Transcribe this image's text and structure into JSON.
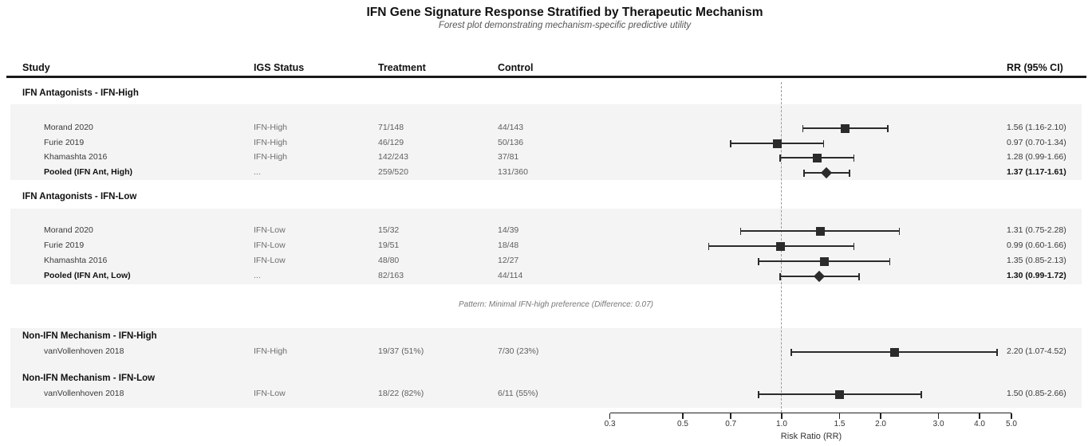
{
  "chart_data": {
    "type": "forest",
    "title": "IFN Gene Signature Response Stratified by Therapeutic Mechanism",
    "subtitle": "Forest plot demonstrating mechanism-specific predictive utility",
    "annotation": "Pattern: Minimal IFN-high preference (Difference: 0.07)",
    "columns": {
      "study": "Study",
      "igs": "IGS Status",
      "treatment": "Treatment",
      "control": "Control",
      "rr": "RR (95% CI)"
    },
    "x_label": "Risk Ratio (RR)",
    "x_scale": "log",
    "x_ticks": [
      "0.3",
      "0.5",
      "0.7",
      "1.0",
      "1.5",
      "2.0",
      "3.0",
      "4.0",
      "5.0"
    ],
    "x_range": [
      0.3,
      5.0
    ],
    "ref_line": 1.0,
    "groups": [
      {
        "header": "IFN Antagonists - IFN-High",
        "shaded": true,
        "rows": [
          {
            "study": "Morand 2020",
            "igs": "IFN-High",
            "treatment": "71/148",
            "control": "44/143",
            "rr": 1.56,
            "ci_low": 1.16,
            "ci_high": 2.1,
            "rr_text": "1.56 (1.16-2.10)",
            "pooled": false
          },
          {
            "study": "Furie 2019",
            "igs": "IFN-High",
            "treatment": "46/129",
            "control": "50/136",
            "rr": 0.97,
            "ci_low": 0.7,
            "ci_high": 1.34,
            "rr_text": "0.97 (0.70-1.34)",
            "pooled": false
          },
          {
            "study": "Khamashta 2016",
            "igs": "IFN-High",
            "treatment": "142/243",
            "control": "37/81",
            "rr": 1.28,
            "ci_low": 0.99,
            "ci_high": 1.66,
            "rr_text": "1.28 (0.99-1.66)",
            "pooled": false
          },
          {
            "study": "Pooled (IFN Ant, High)",
            "igs": "...",
            "treatment": "259/520",
            "control": "131/360",
            "rr": 1.37,
            "ci_low": 1.17,
            "ci_high": 1.61,
            "rr_text": "1.37 (1.17-1.61)",
            "pooled": true
          }
        ]
      },
      {
        "header": "IFN Antagonists - IFN-Low",
        "shaded": true,
        "rows": [
          {
            "study": "Morand 2020",
            "igs": "IFN-Low",
            "treatment": "15/32",
            "control": "14/39",
            "rr": 1.31,
            "ci_low": 0.75,
            "ci_high": 2.28,
            "rr_text": "1.31 (0.75-2.28)",
            "pooled": false
          },
          {
            "study": "Furie 2019",
            "igs": "IFN-Low",
            "treatment": "19/51",
            "control": "18/48",
            "rr": 0.99,
            "ci_low": 0.6,
            "ci_high": 1.66,
            "rr_text": "0.99 (0.60-1.66)",
            "pooled": false
          },
          {
            "study": "Khamashta 2016",
            "igs": "IFN-Low",
            "treatment": "48/80",
            "control": "12/27",
            "rr": 1.35,
            "ci_low": 0.85,
            "ci_high": 2.13,
            "rr_text": "1.35 (0.85-2.13)",
            "pooled": false
          },
          {
            "study": "Pooled (IFN Ant, Low)",
            "igs": "...",
            "treatment": "82/163",
            "control": "44/114",
            "rr": 1.3,
            "ci_low": 0.99,
            "ci_high": 1.72,
            "rr_text": "1.30 (0.99-1.72)",
            "pooled": true
          }
        ]
      },
      {
        "header": "Non-IFN Mechanism - IFN-High",
        "shaded": true,
        "rows": [
          {
            "study": "vanVollenhoven 2018",
            "igs": "IFN-High",
            "treatment": "19/37 (51%)",
            "control": "7/30 (23%)",
            "rr": 2.2,
            "ci_low": 1.07,
            "ci_high": 4.52,
            "rr_text": "2.20 (1.07-4.52)",
            "pooled": false
          }
        ]
      },
      {
        "header": "Non-IFN Mechanism - IFN-Low",
        "shaded": true,
        "rows": [
          {
            "study": "vanVollenhoven 2018",
            "igs": "IFN-Low",
            "treatment": "18/22 (82%)",
            "control": "6/11 (55%)",
            "rr": 1.5,
            "ci_low": 0.85,
            "ci_high": 2.66,
            "rr_text": "1.50 (0.85-2.66)",
            "pooled": false
          }
        ]
      }
    ],
    "colors": {
      "marker": "#2b2b2b",
      "band": "#f4f4f4",
      "ref_line_dash": "#999999",
      "axis": "#222222"
    }
  }
}
